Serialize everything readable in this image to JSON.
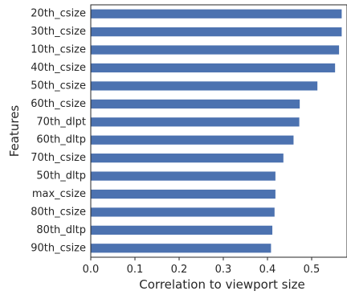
{
  "chart_data": {
    "type": "bar",
    "orientation": "horizontal",
    "title": "",
    "xlabel": "Correlation to viewport size",
    "ylabel": "Features",
    "xlim": [
      0,
      0.58
    ],
    "xticks": [
      "0.0",
      "0.1",
      "0.2",
      "0.3",
      "0.4",
      "0.5"
    ],
    "grid": false,
    "legend": "none",
    "bar_color": "#4c72b0",
    "categories": [
      "20th_csize",
      "30th_csize",
      "10th_csize",
      "40th_csize",
      "50th_csize",
      "60th_csize",
      "70th_dlpt",
      "60th_dltp",
      "70th_csize",
      "50th_dltp",
      "max_csize",
      "80th_csize",
      "80th_dltp",
      "90th_csize"
    ],
    "values": [
      0.568,
      0.568,
      0.562,
      0.553,
      0.513,
      0.473,
      0.472,
      0.459,
      0.436,
      0.418,
      0.418,
      0.416,
      0.411,
      0.408
    ]
  }
}
